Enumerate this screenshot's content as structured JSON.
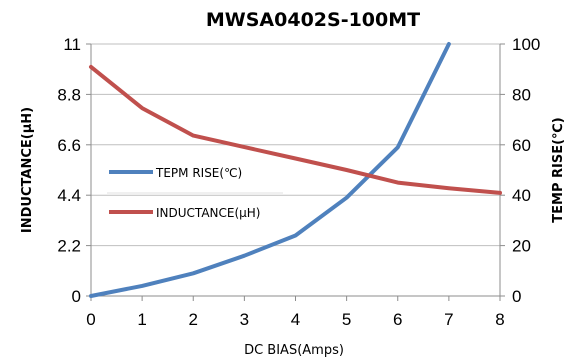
{
  "chart_data": {
    "type": "line",
    "title": "MWSA0402S-100MT",
    "xlabel": "DC BIAS(Amps)",
    "ylabel_left": "INDUCTANCE(µH)",
    "ylabel_right": "TEMP RISE(℃)",
    "x": [
      0,
      1,
      2,
      3,
      4,
      5,
      6,
      7,
      8
    ],
    "xlim": [
      0,
      8
    ],
    "x_ticks": [
      "0",
      "1",
      "2",
      "3",
      "4",
      "5",
      "6",
      "7",
      "8"
    ],
    "ylim_left": [
      0,
      11
    ],
    "y_ticks_left": [
      "0",
      "2.2",
      "4.4",
      "6.6",
      "8.8",
      "11"
    ],
    "ylim_right": [
      0,
      100
    ],
    "y_ticks_right": [
      "0",
      "20",
      "40",
      "60",
      "80",
      "100"
    ],
    "grid": "horizontal",
    "legend_placement": "left-middle",
    "series": [
      {
        "name": "TEPM RISE(℃)",
        "axis": "right",
        "color": "#4f81bd",
        "x": [
          0,
          1,
          2,
          3,
          4,
          5,
          6,
          7
        ],
        "values": [
          0,
          4,
          9,
          16,
          24,
          39,
          59,
          100
        ]
      },
      {
        "name": "INDUCTANCE(µH)",
        "axis": "left",
        "color": "#c0504d",
        "x": [
          0,
          1,
          2,
          3,
          4,
          5,
          6,
          7,
          8
        ],
        "values": [
          10.0,
          8.2,
          7.0,
          6.5,
          6.0,
          5.5,
          4.95,
          4.7,
          4.5
        ]
      }
    ]
  }
}
